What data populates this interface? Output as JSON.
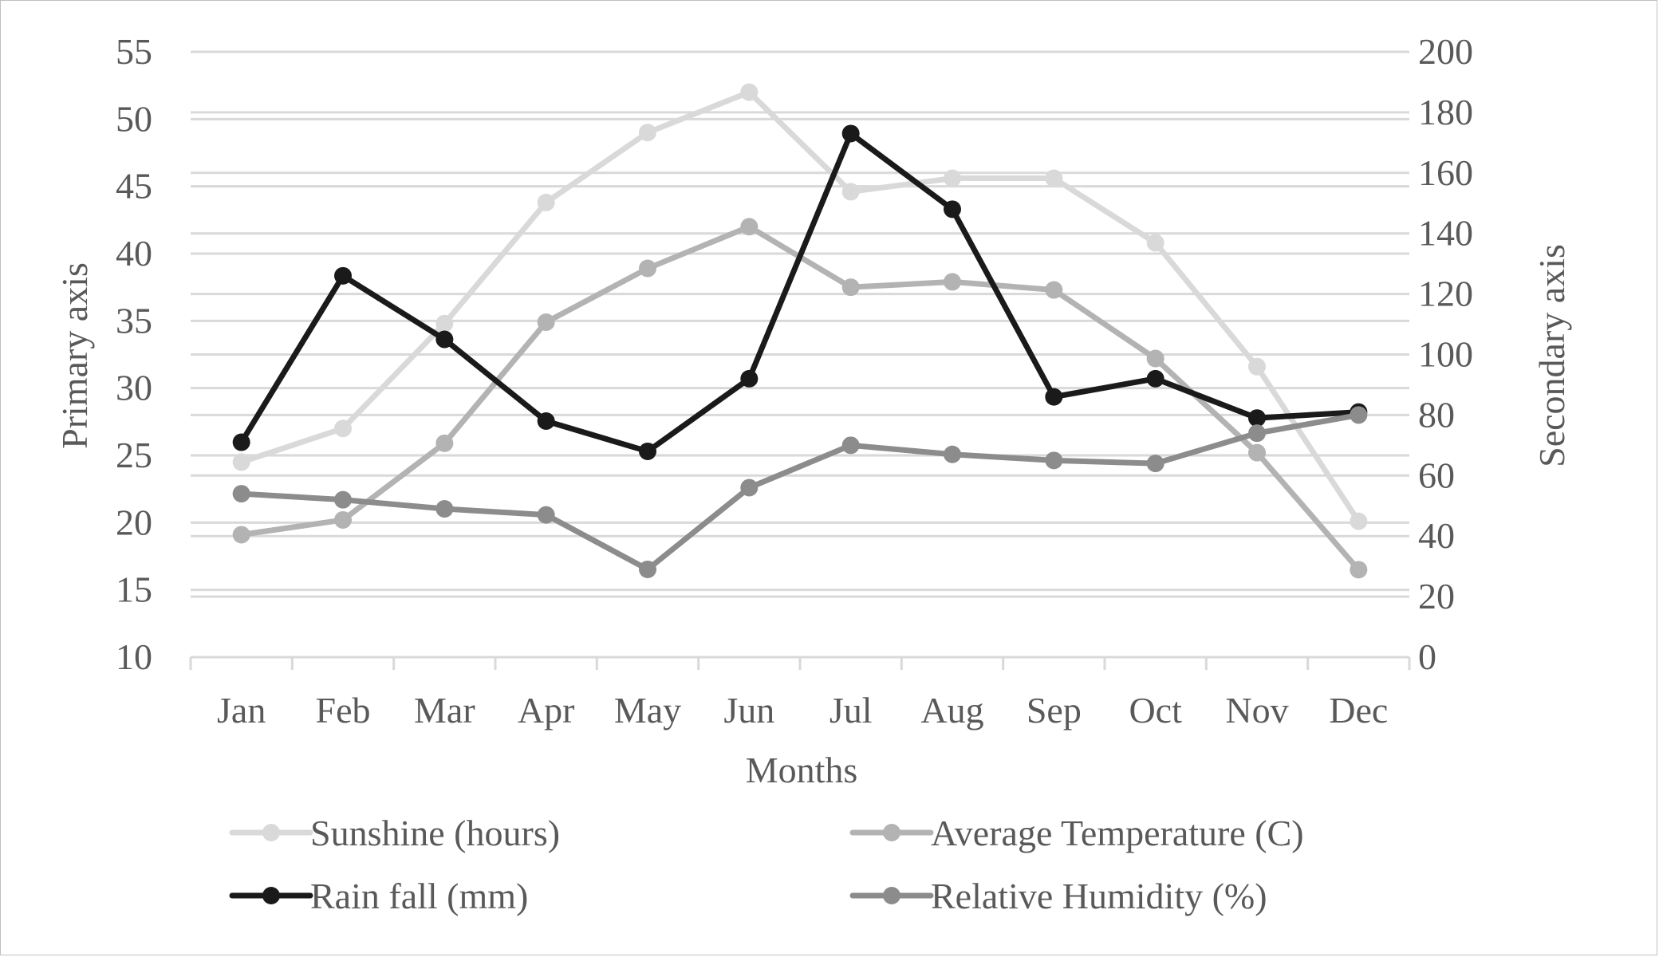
{
  "chart_data": {
    "type": "line",
    "title": "",
    "xlabel": "Months",
    "ylabel": "Primary axis",
    "ylabel_secondary": "Secondary axis",
    "categories": [
      "Jan",
      "Feb",
      "Mar",
      "Apr",
      "May",
      "Jun",
      "Jul",
      "Aug",
      "Sep",
      "Oct",
      "Nov",
      "Dec"
    ],
    "ylim": [
      10,
      55
    ],
    "ylim_secondary": [
      0,
      200
    ],
    "yticks": [
      10,
      15,
      20,
      25,
      30,
      35,
      40,
      45,
      50,
      55
    ],
    "yticks_secondary": [
      0,
      20,
      40,
      60,
      80,
      100,
      120,
      140,
      160,
      180,
      200
    ],
    "grid": true,
    "legend_position": "bottom",
    "series": [
      {
        "name": "Sunshine (hours)",
        "axis": "primary",
        "color": "#d9d9d9",
        "values": [
          24.5,
          27.0,
          34.8,
          43.8,
          49.0,
          52.0,
          44.6,
          45.6,
          45.6,
          40.8,
          31.6,
          20.1
        ]
      },
      {
        "name": "Average Temperature (C)",
        "axis": "primary",
        "color": "#b3b3b3",
        "values": [
          19.1,
          20.2,
          25.9,
          34.9,
          38.9,
          42.0,
          37.5,
          37.9,
          37.3,
          32.2,
          25.2,
          16.5
        ]
      },
      {
        "name": "Rain fall (mm)",
        "axis": "secondary",
        "color": "#1a1a1a",
        "values": [
          71,
          126,
          105,
          78,
          68,
          92,
          173,
          148,
          86,
          92,
          79,
          81
        ]
      },
      {
        "name": "Relative Humidity (%)",
        "axis": "secondary",
        "color": "#8c8c8c",
        "values": [
          54,
          52,
          49,
          47,
          29,
          56,
          70,
          67,
          65,
          64,
          74,
          80
        ]
      }
    ]
  }
}
